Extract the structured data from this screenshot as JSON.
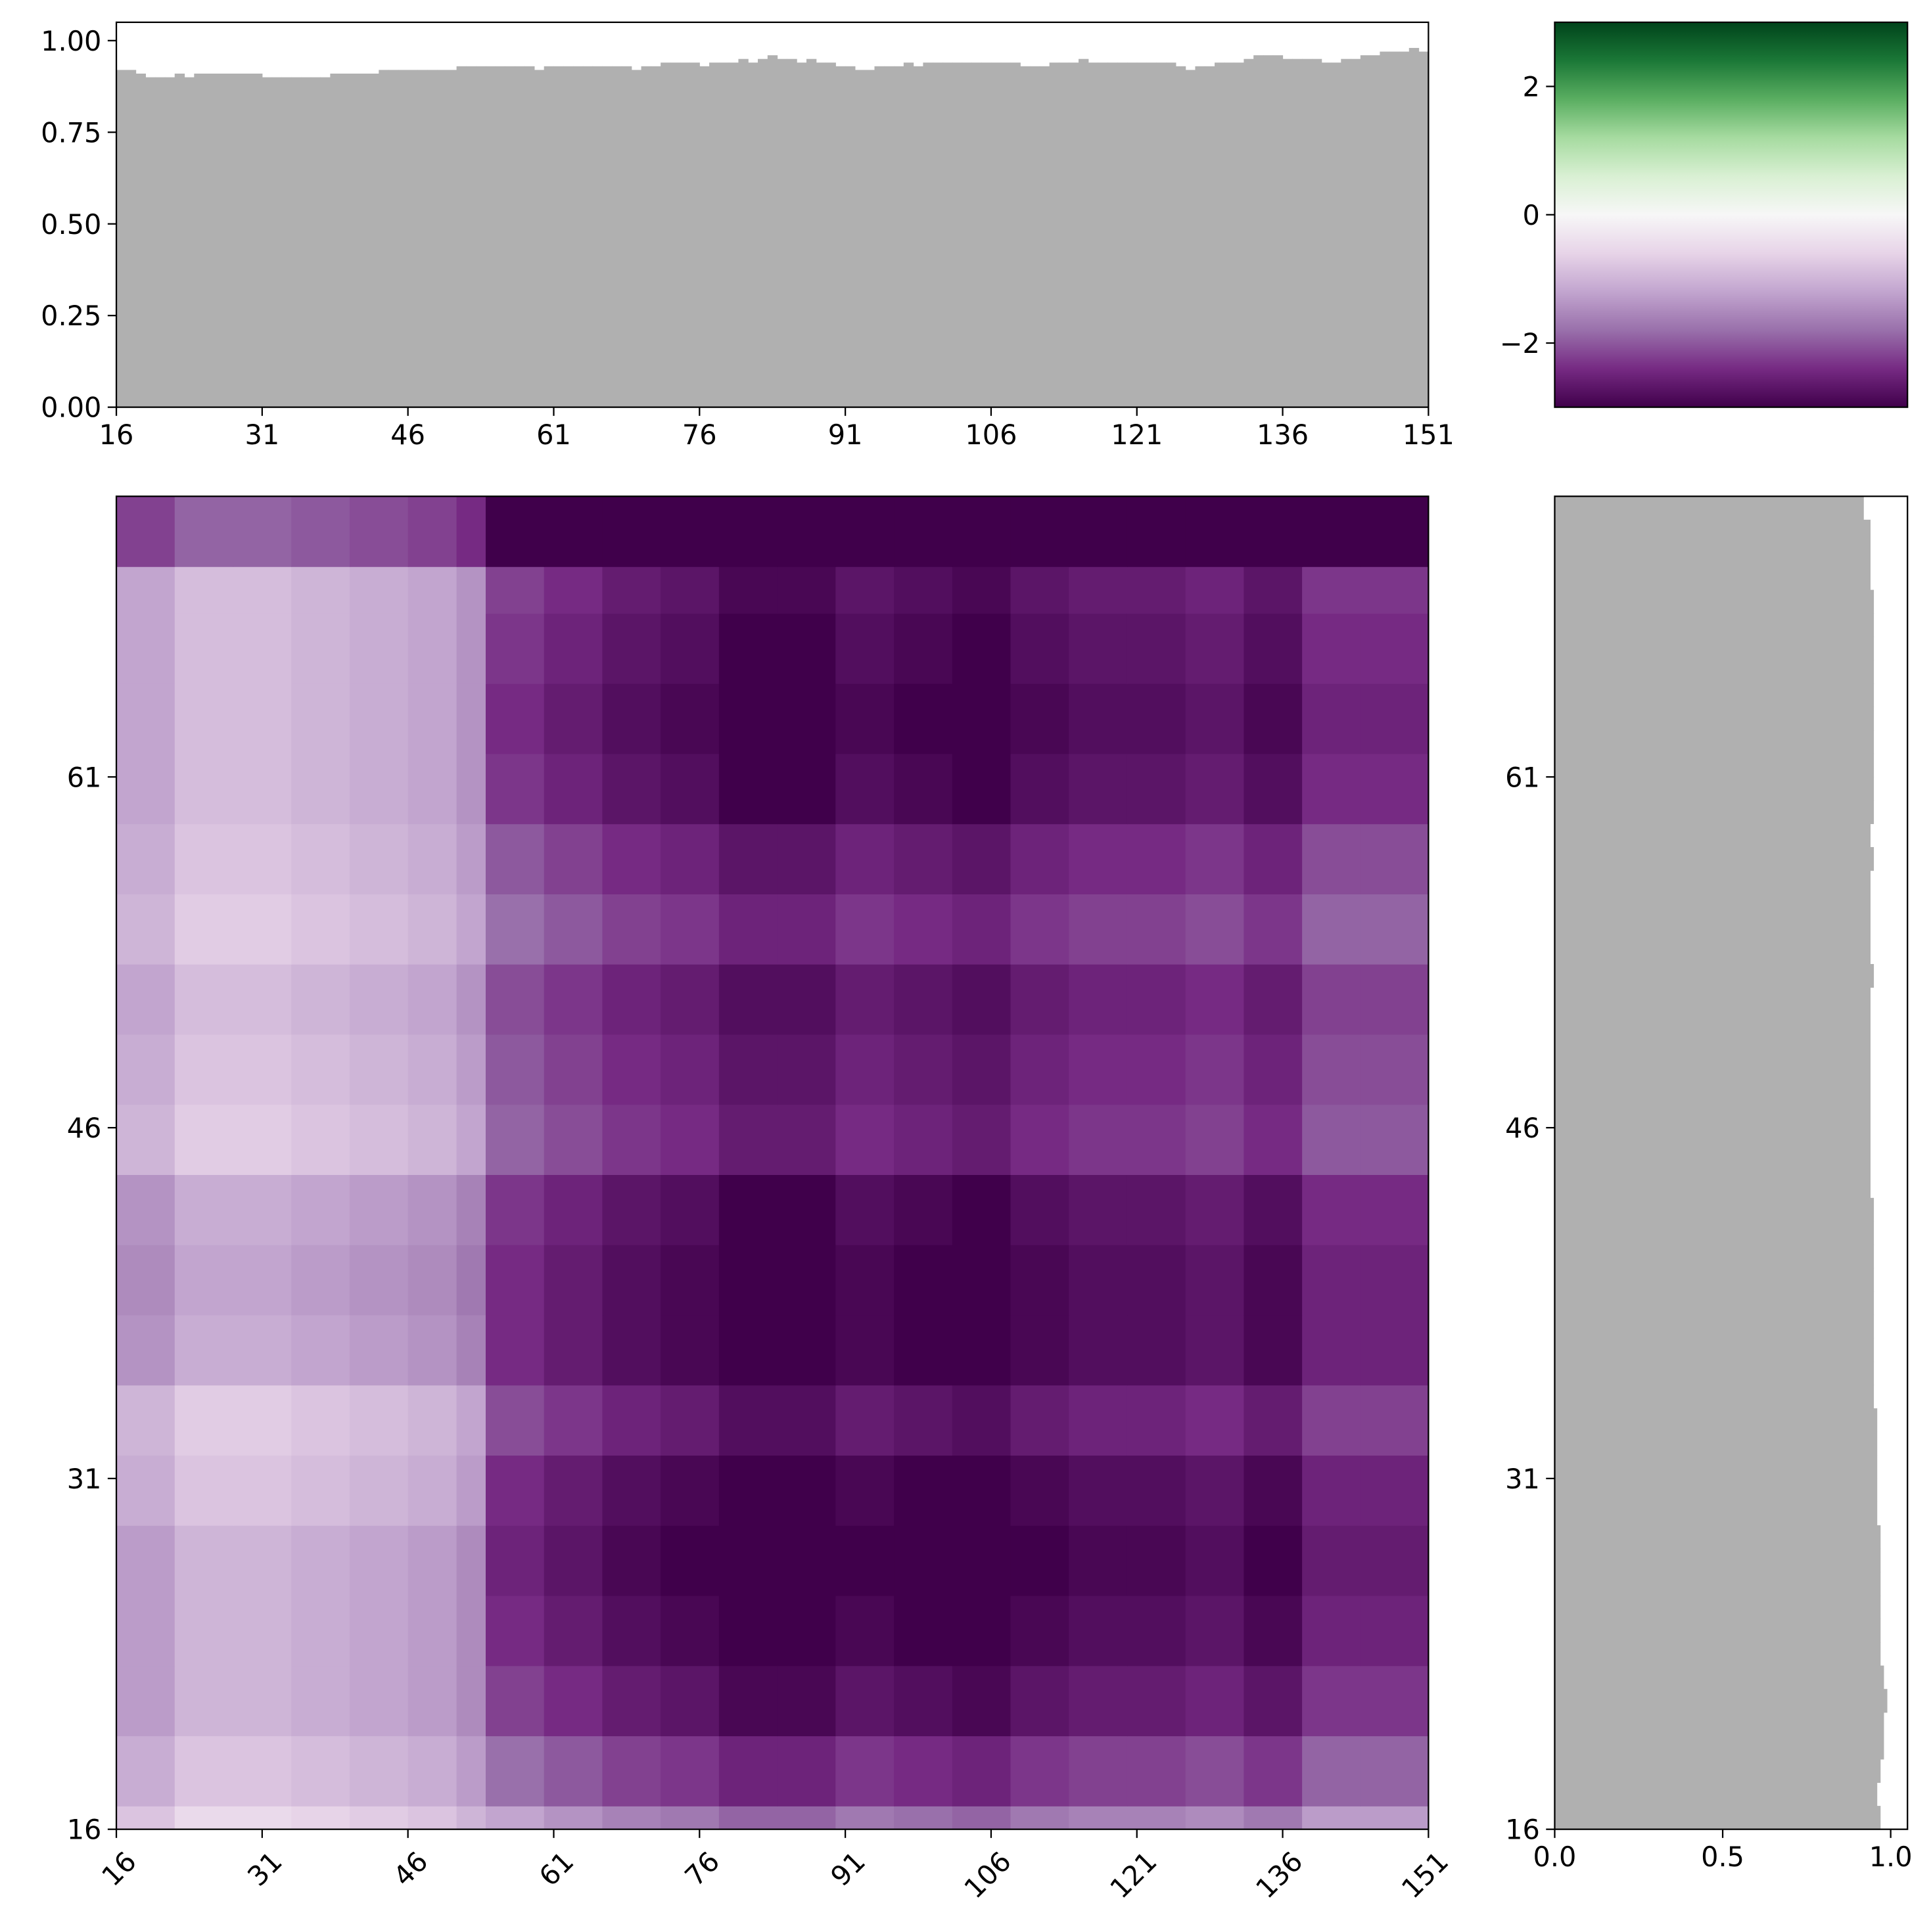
{
  "chart_data": [
    {
      "type": "bar",
      "color": "#b0b0b0",
      "x": [
        16,
        17,
        18,
        19,
        20,
        21,
        22,
        23,
        24,
        25,
        26,
        27,
        28,
        29,
        30,
        31,
        32,
        33,
        34,
        35,
        36,
        37,
        38,
        39,
        40,
        41,
        42,
        43,
        44,
        45,
        46,
        47,
        48,
        49,
        50,
        51,
        52,
        53,
        54,
        55,
        56,
        57,
        58,
        59,
        60,
        61,
        62,
        63,
        64,
        65,
        66,
        67,
        68,
        69,
        70,
        71,
        72,
        73,
        74,
        75,
        76,
        77,
        78,
        79,
        80,
        81,
        82,
        83,
        84,
        85,
        86,
        87,
        88,
        89,
        90,
        91,
        92,
        93,
        94,
        95,
        96,
        97,
        98,
        99,
        100,
        101,
        102,
        103,
        104,
        105,
        106,
        107,
        108,
        109,
        110,
        111,
        112,
        113,
        114,
        115,
        116,
        117,
        118,
        119,
        120,
        121,
        122,
        123,
        124,
        125,
        126,
        127,
        128,
        129,
        130,
        131,
        132,
        133,
        134,
        135,
        136,
        137,
        138,
        139,
        140,
        141,
        142,
        143,
        144,
        145,
        146,
        147,
        148,
        149,
        150
      ],
      "values": [
        0.92,
        0.92,
        0.91,
        0.9,
        0.9,
        0.9,
        0.91,
        0.9,
        0.91,
        0.91,
        0.91,
        0.91,
        0.91,
        0.91,
        0.91,
        0.9,
        0.9,
        0.9,
        0.9,
        0.9,
        0.9,
        0.9,
        0.91,
        0.91,
        0.91,
        0.91,
        0.91,
        0.92,
        0.92,
        0.92,
        0.92,
        0.92,
        0.92,
        0.92,
        0.92,
        0.93,
        0.93,
        0.93,
        0.93,
        0.93,
        0.93,
        0.93,
        0.93,
        0.92,
        0.93,
        0.93,
        0.93,
        0.93,
        0.93,
        0.93,
        0.93,
        0.93,
        0.93,
        0.92,
        0.93,
        0.93,
        0.94,
        0.94,
        0.94,
        0.94,
        0.93,
        0.94,
        0.94,
        0.94,
        0.95,
        0.94,
        0.95,
        0.96,
        0.95,
        0.95,
        0.94,
        0.95,
        0.94,
        0.94,
        0.93,
        0.93,
        0.92,
        0.92,
        0.93,
        0.93,
        0.93,
        0.94,
        0.93,
        0.94,
        0.94,
        0.94,
        0.94,
        0.94,
        0.94,
        0.94,
        0.94,
        0.94,
        0.94,
        0.93,
        0.93,
        0.93,
        0.94,
        0.94,
        0.94,
        0.95,
        0.94,
        0.94,
        0.94,
        0.94,
        0.94,
        0.94,
        0.94,
        0.94,
        0.94,
        0.93,
        0.92,
        0.93,
        0.93,
        0.94,
        0.94,
        0.94,
        0.95,
        0.96,
        0.96,
        0.96,
        0.95,
        0.95,
        0.95,
        0.95,
        0.94,
        0.94,
        0.95,
        0.95,
        0.96,
        0.96,
        0.97,
        0.97,
        0.97,
        0.98,
        0.97
      ],
      "xlim": [
        16,
        151
      ],
      "ylim": [
        0,
        1.05
      ],
      "xticks": [
        16,
        31,
        46,
        61,
        76,
        91,
        106,
        121,
        136,
        151
      ],
      "yticks": [
        {
          "value": 0,
          "label": "0.00"
        },
        {
          "value": 0.25,
          "label": "0.25"
        },
        {
          "value": 0.5,
          "label": "0.50"
        },
        {
          "value": 0.75,
          "label": "0.75"
        },
        {
          "value": 1,
          "label": "1.00"
        }
      ]
    },
    {
      "type": "colorbar",
      "colormap": "PRGn",
      "ylim": [
        -3,
        3
      ],
      "yticks": [
        {
          "value": -2,
          "label": "−2"
        },
        0,
        2
      ]
    },
    {
      "type": "heatmap",
      "colormap": "PRGn",
      "clim": [
        -3,
        3
      ],
      "xtick_rotation": 45,
      "x_edges": [
        16,
        22,
        28,
        34,
        40,
        46,
        51,
        54,
        60,
        66,
        72,
        78,
        84,
        90,
        96,
        102,
        108,
        114,
        120,
        126,
        132,
        138,
        144,
        151
      ],
      "y_edges": [
        16,
        17,
        20,
        23,
        26,
        29,
        32,
        35,
        38,
        41,
        44,
        47,
        50,
        53,
        56,
        59,
        62,
        65,
        68,
        70,
        73
      ],
      "z": [
        [
          -0.8,
          -0.5,
          -0.5,
          -0.6,
          -0.7,
          -0.8,
          -1.0,
          -1.2,
          -1.4,
          -1.6,
          -1.7,
          -1.9,
          -1.9,
          -1.7,
          -1.8,
          -1.9,
          -1.7,
          -1.6,
          -1.6,
          -1.5,
          -1.7,
          -1.3,
          -1.3
        ],
        [
          -1.1,
          -0.8,
          -0.8,
          -0.9,
          -1.0,
          -1.1,
          -1.3,
          -1.8,
          -2.0,
          -2.2,
          -2.3,
          -2.5,
          -2.5,
          -2.3,
          -2.4,
          -2.5,
          -2.3,
          -2.2,
          -2.2,
          -2.1,
          -2.3,
          -1.9,
          -1.9
        ],
        [
          -1.3,
          -1.0,
          -1.0,
          -1.1,
          -1.2,
          -1.3,
          -1.5,
          -2.2,
          -2.4,
          -2.6,
          -2.7,
          -2.9,
          -2.9,
          -2.7,
          -2.8,
          -2.9,
          -2.7,
          -2.6,
          -2.6,
          -2.5,
          -2.7,
          -2.3,
          -2.3
        ],
        [
          -1.3,
          -1.0,
          -1.0,
          -1.1,
          -1.2,
          -1.3,
          -1.5,
          -2.4,
          -2.6,
          -2.8,
          -2.9,
          -3,
          -3,
          -2.9,
          -3,
          -3,
          -2.9,
          -2.8,
          -2.8,
          -2.7,
          -2.9,
          -2.5,
          -2.5
        ],
        [
          -1.3,
          -1.0,
          -1.0,
          -1.1,
          -1.2,
          -1.3,
          -1.5,
          -2.5,
          -2.7,
          -2.9,
          -3,
          -3,
          -3,
          -3,
          -3,
          -3,
          -3,
          -2.9,
          -2.9,
          -2.8,
          -3,
          -2.6,
          -2.6
        ],
        [
          -1.1,
          -0.8,
          -0.8,
          -0.9,
          -1.0,
          -1.1,
          -1.3,
          -2.4,
          -2.6,
          -2.8,
          -2.9,
          -3,
          -3,
          -2.9,
          -3,
          -3,
          -2.9,
          -2.8,
          -2.8,
          -2.7,
          -2.9,
          -2.5,
          -2.5
        ],
        [
          -1.0,
          -0.7,
          -0.7,
          -0.8,
          -0.9,
          -1.0,
          -1.2,
          -2.1,
          -2.3,
          -2.5,
          -2.6,
          -2.8,
          -2.8,
          -2.6,
          -2.7,
          -2.8,
          -2.6,
          -2.5,
          -2.5,
          -2.4,
          -2.6,
          -2.2,
          -2.2
        ],
        [
          -1.4,
          -1.1,
          -1.1,
          -1.2,
          -1.3,
          -1.4,
          -1.6,
          -2.4,
          -2.6,
          -2.8,
          -2.9,
          -3,
          -3,
          -2.9,
          -3,
          -3,
          -2.9,
          -2.8,
          -2.8,
          -2.7,
          -2.9,
          -2.5,
          -2.5
        ],
        [
          -1.5,
          -1.2,
          -1.2,
          -1.3,
          -1.4,
          -1.5,
          -1.7,
          -2.4,
          -2.6,
          -2.8,
          -2.9,
          -3,
          -3,
          -2.9,
          -3,
          -3,
          -2.9,
          -2.8,
          -2.8,
          -2.7,
          -2.9,
          -2.5,
          -2.5
        ],
        [
          -1.4,
          -1.1,
          -1.1,
          -1.2,
          -1.3,
          -1.4,
          -1.6,
          -2.3,
          -2.5,
          -2.7,
          -2.8,
          -3,
          -3,
          -2.8,
          -2.9,
          -3,
          -2.8,
          -2.7,
          -2.7,
          -2.6,
          -2.8,
          -2.4,
          -2.4
        ],
        [
          -1.0,
          -0.7,
          -0.7,
          -0.8,
          -0.9,
          -1.0,
          -1.2,
          -1.9,
          -2.1,
          -2.3,
          -2.4,
          -2.6,
          -2.6,
          -2.4,
          -2.5,
          -2.6,
          -2.4,
          -2.3,
          -2.3,
          -2.2,
          -2.4,
          -2.0,
          -2.0
        ],
        [
          -1.1,
          -0.8,
          -0.8,
          -0.9,
          -1.0,
          -1.1,
          -1.3,
          -2.0,
          -2.2,
          -2.4,
          -2.5,
          -2.7,
          -2.7,
          -2.5,
          -2.6,
          -2.7,
          -2.5,
          -2.4,
          -2.4,
          -2.3,
          -2.5,
          -2.1,
          -2.1
        ],
        [
          -1.2,
          -0.9,
          -0.9,
          -1.0,
          -1.1,
          -1.2,
          -1.4,
          -2.1,
          -2.3,
          -2.5,
          -2.6,
          -2.8,
          -2.8,
          -2.6,
          -2.7,
          -2.8,
          -2.6,
          -2.5,
          -2.5,
          -2.4,
          -2.6,
          -2.2,
          -2.2
        ],
        [
          -1.0,
          -0.7,
          -0.7,
          -0.8,
          -0.9,
          -1.0,
          -1.2,
          -1.8,
          -2.0,
          -2.2,
          -2.3,
          -2.5,
          -2.5,
          -2.3,
          -2.4,
          -2.5,
          -2.3,
          -2.2,
          -2.2,
          -2.1,
          -2.3,
          -1.9,
          -1.9
        ],
        [
          -1.1,
          -0.8,
          -0.8,
          -0.9,
          -1.0,
          -1.1,
          -1.3,
          -2.0,
          -2.2,
          -2.4,
          -2.5,
          -2.7,
          -2.7,
          -2.5,
          -2.6,
          -2.7,
          -2.5,
          -2.4,
          -2.4,
          -2.3,
          -2.5,
          -2.1,
          -2.1
        ],
        [
          -1.2,
          -0.9,
          -0.9,
          -1.0,
          -1.1,
          -1.2,
          -1.4,
          -2.3,
          -2.5,
          -2.7,
          -2.8,
          -3,
          -3,
          -2.8,
          -2.9,
          -3,
          -2.8,
          -2.7,
          -2.7,
          -2.6,
          -2.8,
          -2.4,
          -2.4
        ],
        [
          -1.2,
          -0.9,
          -0.9,
          -1.0,
          -1.1,
          -1.2,
          -1.4,
          -2.4,
          -2.6,
          -2.8,
          -2.9,
          -3,
          -3,
          -2.9,
          -3,
          -3,
          -2.9,
          -2.8,
          -2.8,
          -2.7,
          -2.9,
          -2.5,
          -2.5
        ],
        [
          -1.2,
          -0.9,
          -0.9,
          -1.0,
          -1.1,
          -1.2,
          -1.4,
          -2.3,
          -2.5,
          -2.7,
          -2.8,
          -3,
          -3,
          -2.8,
          -2.9,
          -3,
          -2.8,
          -2.7,
          -2.7,
          -2.6,
          -2.8,
          -2.4,
          -2.4
        ],
        [
          -1.2,
          -0.9,
          -0.9,
          -1.0,
          -1.1,
          -1.2,
          -1.4,
          -2.2,
          -2.4,
          -2.6,
          -2.7,
          -2.9,
          -2.9,
          -2.7,
          -2.8,
          -2.9,
          -2.7,
          -2.6,
          -2.6,
          -2.5,
          -2.7,
          -2.3,
          -2.3
        ],
        [
          -2.2,
          -1.9,
          -1.9,
          -2.0,
          -2.1,
          -2.2,
          -2.4,
          -3,
          -3,
          -3,
          -3,
          -3,
          -3,
          -3,
          -3,
          -3,
          -3,
          -3,
          -3,
          -3,
          -3,
          -3,
          -3
        ]
      ],
      "xlim": [
        16,
        151
      ],
      "ylim": [
        16,
        73
      ],
      "xticks": [
        16,
        31,
        46,
        61,
        76,
        91,
        106,
        121,
        136,
        151
      ],
      "yticks": [
        16,
        31,
        46,
        61
      ]
    },
    {
      "type": "barh",
      "color": "#b0b0b0",
      "y": [
        16,
        17,
        18,
        19,
        20,
        21,
        22,
        23,
        24,
        25,
        26,
        27,
        28,
        29,
        30,
        31,
        32,
        33,
        34,
        35,
        36,
        37,
        38,
        39,
        40,
        41,
        42,
        43,
        44,
        45,
        46,
        47,
        48,
        49,
        50,
        51,
        52,
        53,
        54,
        55,
        56,
        57,
        58,
        59,
        60,
        61,
        62,
        63,
        64,
        65,
        66,
        67,
        68,
        69,
        70,
        71,
        72
      ],
      "values": [
        0.97,
        0.96,
        0.97,
        0.98,
        0.98,
        0.99,
        0.98,
        0.97,
        0.97,
        0.97,
        0.97,
        0.97,
        0.97,
        0.96,
        0.96,
        0.96,
        0.96,
        0.96,
        0.95,
        0.95,
        0.95,
        0.95,
        0.95,
        0.95,
        0.95,
        0.95,
        0.95,
        0.94,
        0.94,
        0.94,
        0.94,
        0.94,
        0.94,
        0.94,
        0.94,
        0.94,
        0.95,
        0.94,
        0.94,
        0.94,
        0.94,
        0.95,
        0.94,
        0.95,
        0.95,
        0.95,
        0.95,
        0.95,
        0.95,
        0.95,
        0.95,
        0.95,
        0.95,
        0.94,
        0.94,
        0.94,
        0.92
      ],
      "xlim": [
        0,
        1.05
      ],
      "ylim": [
        16,
        73
      ],
      "xticks": [
        {
          "value": 0,
          "label": "0.0"
        },
        {
          "value": 0.5,
          "label": "0.5"
        },
        {
          "value": 1,
          "label": "1.0"
        }
      ],
      "yticks": [
        16,
        31,
        46,
        61
      ]
    }
  ]
}
